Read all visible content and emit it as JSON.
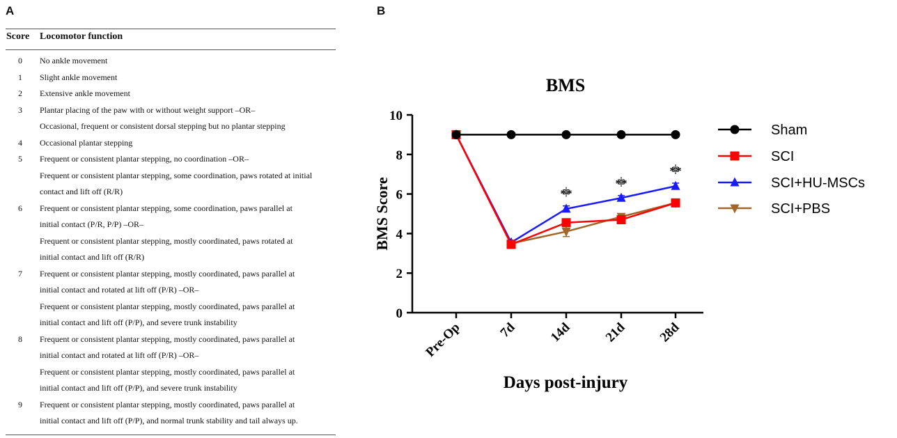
{
  "panel_a": {
    "letter": "A",
    "header_score": "Score",
    "header_function": "Locomotor function",
    "rows": [
      {
        "score": "0",
        "lines": [
          "No ankle movement"
        ]
      },
      {
        "score": "1",
        "lines": [
          "Slight ankle movement"
        ]
      },
      {
        "score": "2",
        "lines": [
          "Extensive ankle movement"
        ]
      },
      {
        "score": "3",
        "lines": [
          "Plantar placing of the paw with or without weight support –OR–",
          "Occasional, frequent or consistent dorsal stepping but no plantar stepping"
        ]
      },
      {
        "score": "4",
        "lines": [
          "Occasional plantar stepping"
        ]
      },
      {
        "score": "5",
        "lines": [
          "Frequent or consistent plantar stepping, no coordination –OR–",
          "Frequent or consistent plantar stepping, some coordination, paws rotated at initial",
          "contact and lift off (R/R)"
        ]
      },
      {
        "score": "6",
        "lines": [
          "Frequent or consistent plantar stepping, some coordination, paws parallel at",
          "initial contact (P/R, P/P) –OR–",
          "Frequent or consistent plantar stepping, mostly coordinated, paws rotated at",
          "initial contact and lift off (R/R)"
        ]
      },
      {
        "score": "7",
        "lines": [
          "Frequent or consistent plantar stepping, mostly coordinated, paws parallel at",
          "initial contact and rotated at lift off (P/R) –OR–",
          "Frequent or consistent plantar stepping, mostly coordinated, paws parallel at",
          "initial contact and lift off (P/P), and severe trunk instability"
        ]
      },
      {
        "score": "8",
        "lines": [
          "Frequent or consistent plantar stepping, mostly coordinated, paws parallel at",
          "initial contact and rotated at lift off (P/R) –OR–",
          "Frequent or consistent plantar stepping, mostly coordinated, paws parallel at",
          "initial contact and lift off (P/P), and severe trunk instability"
        ]
      },
      {
        "score": "9",
        "lines": [
          "Frequent or consistent plantar stepping, mostly coordinated, paws parallel at",
          "initial contact and lift off (P/P), and normal trunk stability and tail always up."
        ]
      }
    ]
  },
  "panel_b": {
    "letter": "B"
  },
  "chart_data": {
    "type": "line",
    "title": "BMS",
    "xlabel": "Days post-injury",
    "ylabel": "BMS Score",
    "categories": [
      "Pre-Op",
      "7d",
      "14d",
      "21d",
      "28d"
    ],
    "ylim": [
      0,
      10
    ],
    "yticks": [
      0,
      2,
      4,
      6,
      8,
      10
    ],
    "legend_position": "right",
    "series": [
      {
        "name": "Sham",
        "values": [
          9,
          9,
          9,
          9,
          9
        ],
        "errors": [
          0,
          0,
          0,
          0,
          0
        ],
        "color": "#000000",
        "marker": "circle"
      },
      {
        "name": "SCI",
        "values": [
          9,
          3.45,
          4.55,
          4.7,
          5.55
        ],
        "errors": [
          0,
          0.1,
          0.15,
          0.15,
          0.1
        ],
        "color": "#ff0000",
        "marker": "square"
      },
      {
        "name": "SCI+HU-MSCs",
        "values": [
          9,
          3.55,
          5.25,
          5.8,
          6.4
        ],
        "errors": [
          0,
          0.1,
          0.15,
          0.12,
          0.15
        ],
        "color": "#1a1aff",
        "marker": "triangle-up"
      },
      {
        "name": "SCI+PBS",
        "values": [
          9,
          3.5,
          4.1,
          4.85,
          5.55
        ],
        "errors": [
          0,
          0.1,
          0.25,
          0.1,
          0.1
        ],
        "color": "#a0662a",
        "marker": "triangle-down"
      }
    ],
    "annotations": [
      {
        "category": "14d",
        "text": "**",
        "dagger": "‡"
      },
      {
        "category": "21d",
        "text": "**",
        "dagger": "‡"
      },
      {
        "category": "28d",
        "text": "**",
        "dagger": "‡"
      }
    ]
  }
}
